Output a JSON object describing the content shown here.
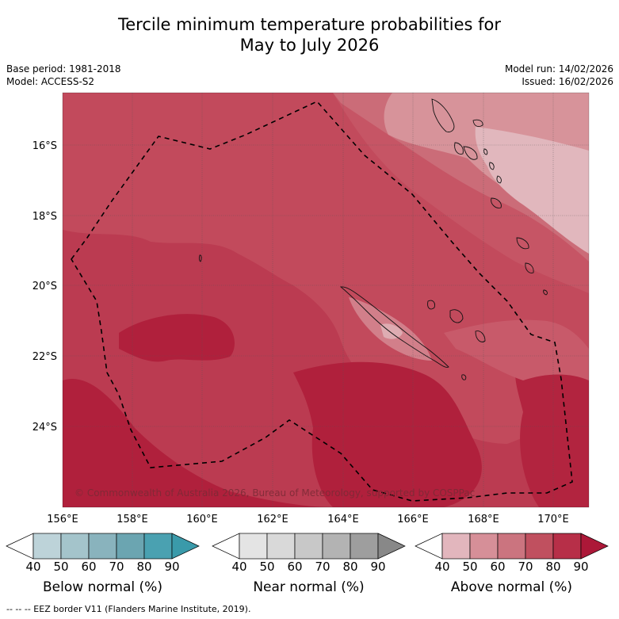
{
  "title": {
    "line1": "Tercile minimum temperature probabilities for",
    "line2": "May to July 2026"
  },
  "meta_left": {
    "base_period": "Base period: 1981-2018",
    "model": "Model: ACCESS-S2"
  },
  "meta_right": {
    "model_run": "Model run: 14/02/2026",
    "issued": "Issued: 16/02/2026"
  },
  "map": {
    "lon_labels": [
      "156°E",
      "158°E",
      "160°E",
      "162°E",
      "164°E",
      "166°E",
      "168°E",
      "170°E"
    ],
    "lat_labels": [
      "16°S",
      "18°S",
      "20°S",
      "22°S",
      "24°S"
    ],
    "copyright": "© Commonwealth of Australia 2026, Bureau of Meteorology, supported by COSPPac"
  },
  "colorbars": [
    {
      "name": "Below normal (%)",
      "ticks": [
        "40",
        "50",
        "60",
        "70",
        "80",
        "90"
      ],
      "colors": [
        "#ffffff",
        "#bdd3d9",
        "#a4c4cb",
        "#89b3bd",
        "#6ba5b1",
        "#4aa1b1",
        "#3a9aaa"
      ]
    },
    {
      "name": "Near normal (%)",
      "ticks": [
        "40",
        "50",
        "60",
        "70",
        "80",
        "90"
      ],
      "colors": [
        "#ffffff",
        "#e4e4e4",
        "#d9d9d9",
        "#c8c8c8",
        "#b3b3b3",
        "#9e9e9e",
        "#888888"
      ]
    },
    {
      "name": "Above normal (%)",
      "ticks": [
        "40",
        "50",
        "60",
        "70",
        "80",
        "90"
      ],
      "colors": [
        "#ffffff",
        "#e2b6bd",
        "#d68f98",
        "#cb747f",
        "#c0505f",
        "#b72f48",
        "#ac1838"
      ]
    }
  ],
  "footer": "-- -- -- EEZ border V11 (Flanders Marine Institute, 2019)."
}
